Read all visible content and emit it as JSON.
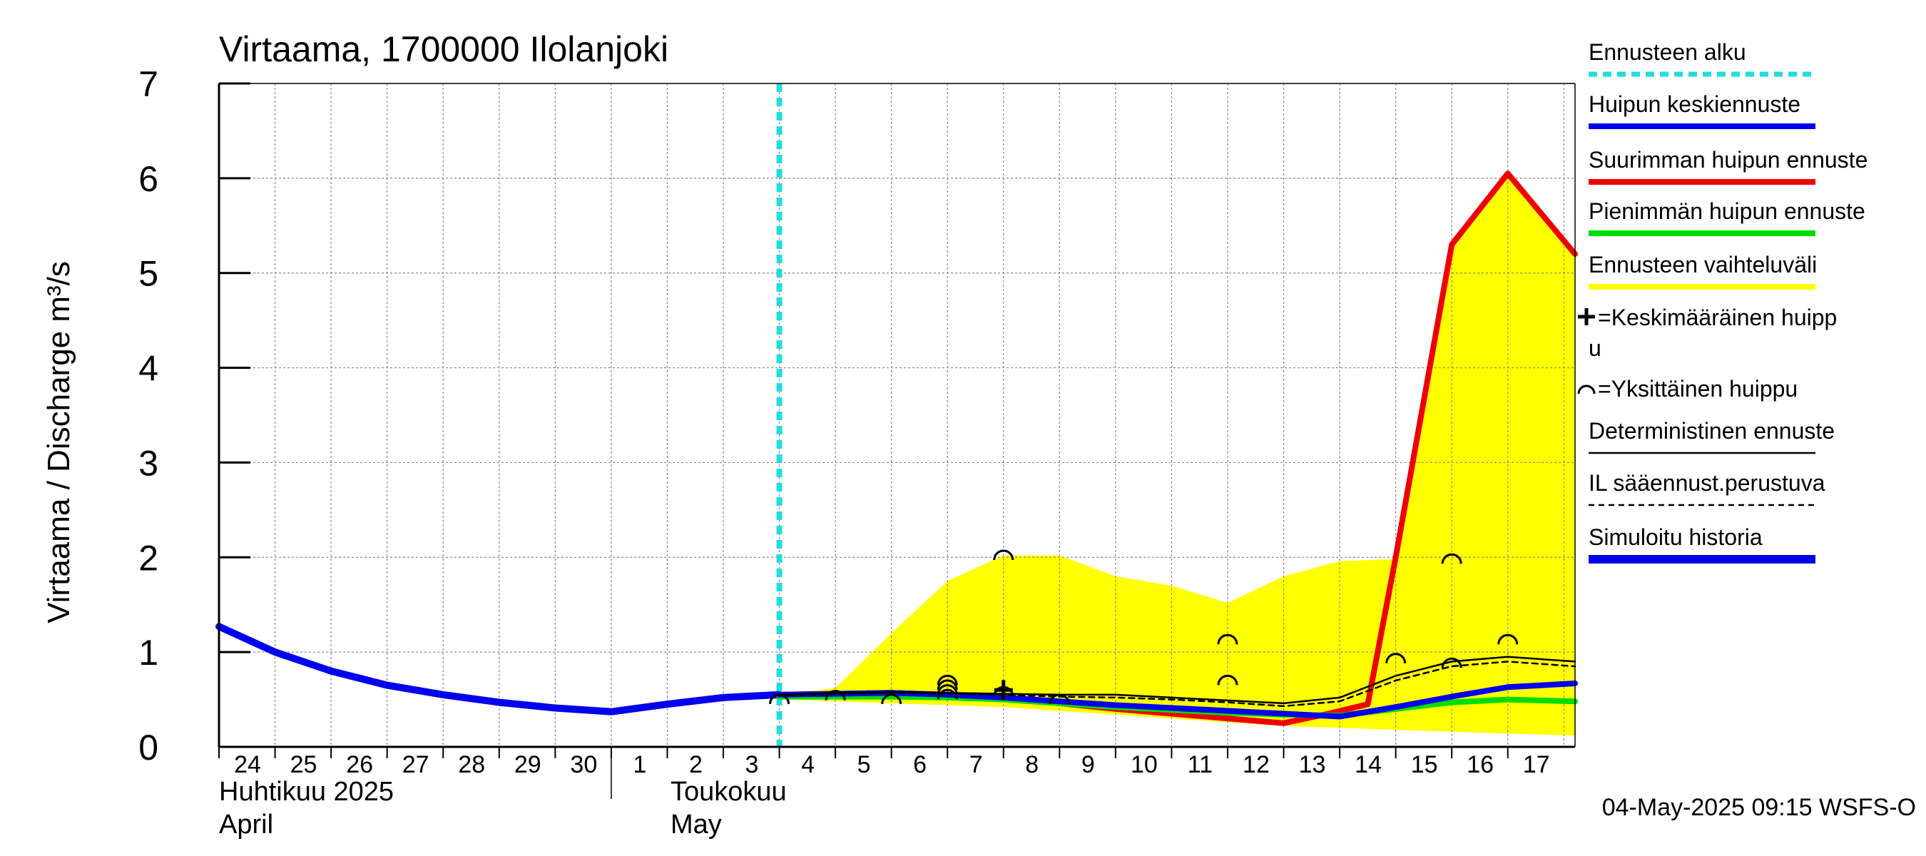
{
  "chart_data": {
    "type": "line",
    "title": "Virtaama, 1700000 Ilolanjoki",
    "ylabel": "Virtaama / Discharge    m³/s",
    "ylim": [
      0,
      7
    ],
    "yticks": [
      0,
      1,
      2,
      3,
      4,
      5,
      6,
      7
    ],
    "grid": true,
    "xlim_days": [
      0,
      24.2
    ],
    "day_labels": [
      "24",
      "25",
      "26",
      "27",
      "28",
      "29",
      "30",
      "1",
      "2",
      "3",
      "4",
      "5",
      "6",
      "7",
      "8",
      "9",
      "10",
      "11",
      "12",
      "13",
      "14",
      "15",
      "16",
      "17"
    ],
    "month_labels": {
      "april_fi": "Huhtikuu  2025",
      "april_en": "April",
      "may_fi": "Toukokuu",
      "may_en": "May"
    },
    "forecast_start_day": 10.0,
    "timestamp": "04-May-2025 09:15 WSFS-O",
    "colors": {
      "forecast_start": "#22dddd",
      "peak_mean": "#0000ee",
      "max_peak": "#ee0000",
      "min_peak": "#00dd00",
      "range": "#ffff00",
      "history": "#0000ee",
      "deterministic": "#000000"
    },
    "series": [
      {
        "name": "Simuloitu historia",
        "x": [
          0,
          1,
          2,
          3,
          4,
          5,
          6,
          7,
          8,
          9,
          10
        ],
        "values": [
          1.27,
          1.0,
          0.8,
          0.65,
          0.55,
          0.47,
          0.41,
          0.37,
          0.45,
          0.52,
          0.55
        ]
      },
      {
        "name": "Huipun keskiennuste",
        "x": [
          10,
          11,
          12,
          13,
          14,
          15,
          16,
          17,
          18,
          19,
          20,
          21,
          22,
          23,
          24.2
        ],
        "values": [
          0.55,
          0.56,
          0.57,
          0.55,
          0.52,
          0.48,
          0.44,
          0.41,
          0.38,
          0.35,
          0.32,
          0.42,
          0.53,
          0.63,
          0.67
        ]
      },
      {
        "name": "Suurimman huipun ennuste",
        "x": [
          10,
          11,
          12,
          13,
          14,
          15,
          16,
          17,
          18,
          19,
          19.8,
          20.5,
          21,
          22,
          23,
          24.2
        ],
        "values": [
          0.55,
          0.56,
          0.57,
          0.55,
          0.52,
          0.46,
          0.4,
          0.35,
          0.3,
          0.25,
          0.35,
          0.45,
          2.0,
          5.3,
          6.05,
          5.2
        ]
      },
      {
        "name": "Pienimmän huipun ennuste",
        "x": [
          10,
          11,
          12,
          13,
          14,
          15,
          16,
          17,
          18,
          19,
          20,
          21,
          22,
          23,
          24.2
        ],
        "values": [
          0.53,
          0.53,
          0.53,
          0.52,
          0.5,
          0.46,
          0.42,
          0.39,
          0.36,
          0.34,
          0.33,
          0.4,
          0.47,
          0.5,
          0.48
        ]
      },
      {
        "name": "Deterministinen ennuste",
        "x": [
          10,
          11,
          12,
          13,
          14,
          15,
          16,
          17,
          18,
          19,
          20,
          21,
          22,
          23,
          24.2
        ],
        "values": [
          0.55,
          0.57,
          0.58,
          0.57,
          0.56,
          0.55,
          0.55,
          0.52,
          0.49,
          0.46,
          0.52,
          0.75,
          0.9,
          0.95,
          0.9
        ]
      },
      {
        "name": "IL sääennust.perustuva",
        "x": [
          10,
          11,
          12,
          13,
          14,
          15,
          16,
          17,
          18,
          19,
          20,
          21,
          22,
          23,
          24.2
        ],
        "values": [
          0.54,
          0.56,
          0.57,
          0.56,
          0.55,
          0.53,
          0.52,
          0.5,
          0.47,
          0.43,
          0.48,
          0.7,
          0.85,
          0.9,
          0.85
        ]
      }
    ],
    "range": {
      "name": "Ennusteen vaihteluväli",
      "x": [
        10,
        11,
        12,
        13,
        14,
        15,
        16,
        17,
        18,
        19,
        20,
        21,
        22,
        23,
        24.2
      ],
      "upper": [
        0.55,
        0.62,
        1.2,
        1.75,
        2.02,
        2.02,
        1.8,
        1.7,
        1.52,
        1.8,
        1.96,
        1.98,
        5.3,
        6.05,
        5.2
      ],
      "lower": [
        0.5,
        0.48,
        0.46,
        0.44,
        0.42,
        0.38,
        0.34,
        0.3,
        0.26,
        0.22,
        0.2,
        0.18,
        0.16,
        0.14,
        0.12
      ]
    },
    "single_peaks": [
      {
        "x": 10.0,
        "y": 0.52
      },
      {
        "x": 11.0,
        "y": 0.56
      },
      {
        "x": 12.0,
        "y": 0.52
      },
      {
        "x": 13.0,
        "y": 0.72
      },
      {
        "x": 13.0,
        "y": 0.67
      },
      {
        "x": 13.0,
        "y": 0.62
      },
      {
        "x": 13.0,
        "y": 0.57
      },
      {
        "x": 14.0,
        "y": 2.04
      },
      {
        "x": 14.0,
        "y": 0.6
      },
      {
        "x": 15.0,
        "y": 0.52
      },
      {
        "x": 18.0,
        "y": 1.15
      },
      {
        "x": 18.0,
        "y": 0.72
      },
      {
        "x": 21.0,
        "y": 0.95
      },
      {
        "x": 22.0,
        "y": 2.0
      },
      {
        "x": 22.0,
        "y": 0.9
      },
      {
        "x": 23.0,
        "y": 1.15
      }
    ],
    "mean_peak": {
      "x": 14.0,
      "y": 0.6
    },
    "legend": [
      {
        "label": "Ennusteen alku",
        "style": "dash",
        "color": "#22dddd"
      },
      {
        "label": "Huipun keskiennuste",
        "style": "line",
        "color": "#0000ee"
      },
      {
        "label": "Suurimman huipun ennuste",
        "style": "line",
        "color": "#ee0000"
      },
      {
        "label": "Pienimmän huipun ennuste",
        "style": "line",
        "color": "#00dd00"
      },
      {
        "label": "Ennusteen vaihteluväli",
        "style": "line",
        "color": "#ffff00"
      },
      {
        "label": "=Keskimääräinen huipp",
        "label2": "u",
        "style": "plus",
        "color": "#000000"
      },
      {
        "label": "=Yksittäinen huippu",
        "style": "arc",
        "color": "#000000"
      },
      {
        "label": "Deterministinen ennuste",
        "style": "thin",
        "color": "#000000"
      },
      {
        "label": "IL sääennust.perustuva",
        "style": "dotted",
        "color": "#000000"
      },
      {
        "label": "Simuloitu historia",
        "style": "thick",
        "color": "#0000ee"
      }
    ]
  }
}
